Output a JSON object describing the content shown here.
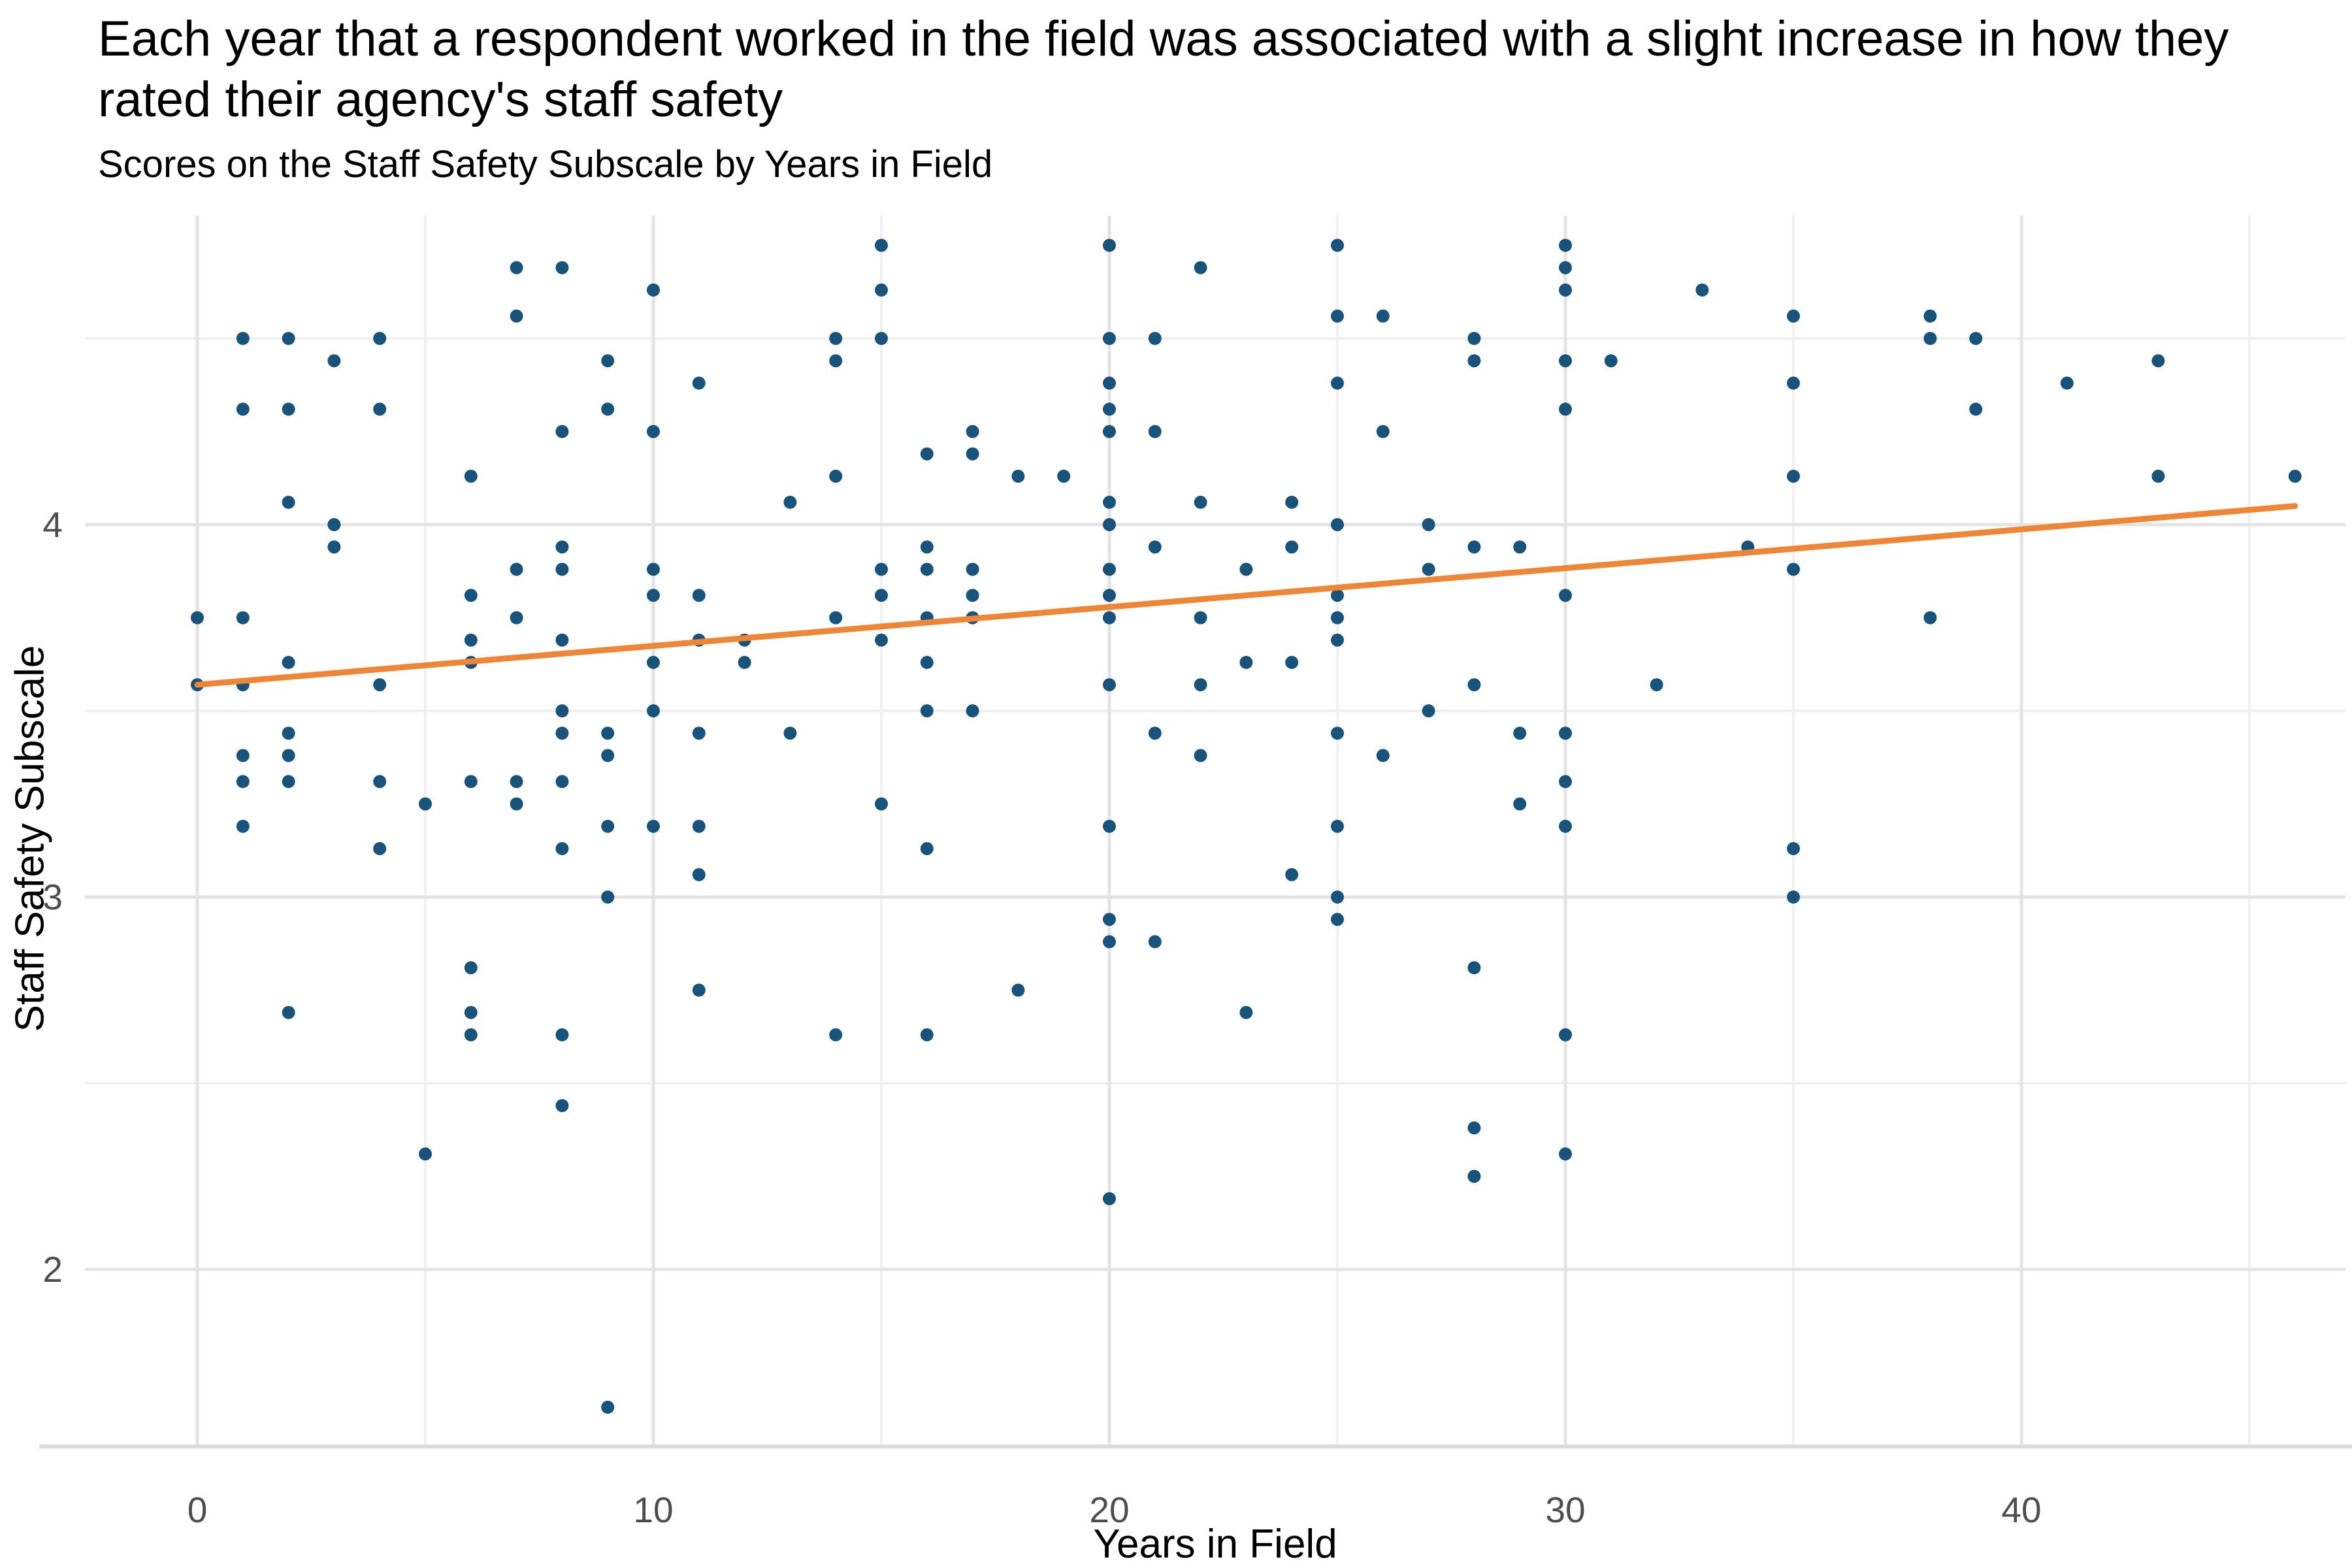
{
  "page": {
    "title": "Each year that a respondent worked in the field was associated with a slight increase in how they rated their agency's staff safety",
    "subtitle": "Scores on the Staff Safety Subscale by Years in Field"
  },
  "chart_data": {
    "type": "scatter",
    "title": "Each year that a respondent worked in the field was associated with a slight increase in how they rated their agency's staff safety",
    "subtitle": "Scores on the Staff Safety Subscale by Years in Field",
    "xlabel": "Years in Field",
    "ylabel": "Staff Safety Subscale",
    "x_ticks": [
      0,
      10,
      20,
      30,
      40
    ],
    "x_minor_ticks": [
      5,
      15,
      25,
      35,
      45
    ],
    "y_ticks": [
      4,
      3,
      2
    ],
    "y_minor_ticks": [
      4.5,
      3.5,
      2.5
    ],
    "xlim": [
      -2.5,
      47.2
    ],
    "ylim": [
      1.52,
      4.83
    ],
    "grid": "major and minor, light gray on white",
    "legend_position": "none",
    "trend_line": {
      "type": "linear",
      "x": [
        0,
        46
      ],
      "y": [
        3.57,
        4.05
      ]
    },
    "colors": {
      "point": "#17537A",
      "trend": "#EE8636",
      "grid_major": "#E3E3E3",
      "grid_minor": "#F0F0F0",
      "axis_line": "#DCDCDC",
      "tick_text": "#4D4D4D"
    },
    "points": [
      [
        15,
        4.75
      ],
      [
        20,
        4.75
      ],
      [
        25,
        4.75
      ],
      [
        30,
        4.75
      ],
      [
        7,
        4.69
      ],
      [
        8,
        4.69
      ],
      [
        22,
        4.69
      ],
      [
        30,
        4.69
      ],
      [
        10,
        4.63
      ],
      [
        15,
        4.63
      ],
      [
        30,
        4.63
      ],
      [
        33,
        4.63
      ],
      [
        7,
        4.56
      ],
      [
        25,
        4.56
      ],
      [
        26,
        4.56
      ],
      [
        35,
        4.56
      ],
      [
        38,
        4.56
      ],
      [
        1,
        4.5
      ],
      [
        2,
        4.5
      ],
      [
        4,
        4.5
      ],
      [
        14,
        4.5
      ],
      [
        15,
        4.5
      ],
      [
        20,
        4.5
      ],
      [
        21,
        4.5
      ],
      [
        28,
        4.5
      ],
      [
        38,
        4.5
      ],
      [
        39,
        4.5
      ],
      [
        3,
        4.44
      ],
      [
        9,
        4.44
      ],
      [
        14,
        4.44
      ],
      [
        28,
        4.44
      ],
      [
        30,
        4.44
      ],
      [
        31,
        4.44
      ],
      [
        43,
        4.44
      ],
      [
        11,
        4.38
      ],
      [
        20,
        4.38
      ],
      [
        25,
        4.38
      ],
      [
        35,
        4.38
      ],
      [
        41,
        4.38
      ],
      [
        1,
        4.31
      ],
      [
        2,
        4.31
      ],
      [
        4,
        4.31
      ],
      [
        9,
        4.31
      ],
      [
        20,
        4.31
      ],
      [
        30,
        4.31
      ],
      [
        39,
        4.31
      ],
      [
        8,
        4.25
      ],
      [
        10,
        4.25
      ],
      [
        17,
        4.25
      ],
      [
        20,
        4.25
      ],
      [
        21,
        4.25
      ],
      [
        26,
        4.25
      ],
      [
        16,
        4.19
      ],
      [
        17,
        4.19
      ],
      [
        6,
        4.13
      ],
      [
        14,
        4.13
      ],
      [
        18,
        4.13
      ],
      [
        19,
        4.13
      ],
      [
        35,
        4.13
      ],
      [
        43,
        4.13
      ],
      [
        46,
        4.13
      ],
      [
        2,
        4.06
      ],
      [
        13,
        4.06
      ],
      [
        20,
        4.06
      ],
      [
        22,
        4.06
      ],
      [
        24,
        4.06
      ],
      [
        3,
        4.0
      ],
      [
        20,
        4.0
      ],
      [
        25,
        4.0
      ],
      [
        27,
        4.0
      ],
      [
        3,
        3.94
      ],
      [
        8,
        3.94
      ],
      [
        16,
        3.94
      ],
      [
        21,
        3.94
      ],
      [
        24,
        3.94
      ],
      [
        28,
        3.94
      ],
      [
        29,
        3.94
      ],
      [
        34,
        3.94
      ],
      [
        7,
        3.88
      ],
      [
        8,
        3.88
      ],
      [
        10,
        3.88
      ],
      [
        15,
        3.88
      ],
      [
        16,
        3.88
      ],
      [
        17,
        3.88
      ],
      [
        20,
        3.88
      ],
      [
        23,
        3.88
      ],
      [
        27,
        3.88
      ],
      [
        35,
        3.88
      ],
      [
        6,
        3.81
      ],
      [
        10,
        3.81
      ],
      [
        11,
        3.81
      ],
      [
        15,
        3.81
      ],
      [
        17,
        3.81
      ],
      [
        20,
        3.81
      ],
      [
        25,
        3.81
      ],
      [
        30,
        3.81
      ],
      [
        0,
        3.75
      ],
      [
        1,
        3.75
      ],
      [
        7,
        3.75
      ],
      [
        14,
        3.75
      ],
      [
        16,
        3.75
      ],
      [
        17,
        3.75
      ],
      [
        20,
        3.75
      ],
      [
        22,
        3.75
      ],
      [
        25,
        3.75
      ],
      [
        38,
        3.75
      ],
      [
        6,
        3.69
      ],
      [
        8,
        3.69
      ],
      [
        11,
        3.69
      ],
      [
        12,
        3.69
      ],
      [
        15,
        3.69
      ],
      [
        25,
        3.69
      ],
      [
        2,
        3.63
      ],
      [
        6,
        3.63
      ],
      [
        10,
        3.63
      ],
      [
        12,
        3.63
      ],
      [
        16,
        3.63
      ],
      [
        23,
        3.63
      ],
      [
        24,
        3.63
      ],
      [
        0,
        3.57
      ],
      [
        1,
        3.57
      ],
      [
        4,
        3.57
      ],
      [
        20,
        3.57
      ],
      [
        22,
        3.57
      ],
      [
        28,
        3.57
      ],
      [
        32,
        3.57
      ],
      [
        8,
        3.5
      ],
      [
        10,
        3.5
      ],
      [
        16,
        3.5
      ],
      [
        17,
        3.5
      ],
      [
        27,
        3.5
      ],
      [
        2,
        3.44
      ],
      [
        8,
        3.44
      ],
      [
        9,
        3.44
      ],
      [
        11,
        3.44
      ],
      [
        13,
        3.44
      ],
      [
        21,
        3.44
      ],
      [
        25,
        3.44
      ],
      [
        29,
        3.44
      ],
      [
        30,
        3.44
      ],
      [
        1,
        3.38
      ],
      [
        2,
        3.38
      ],
      [
        9,
        3.38
      ],
      [
        22,
        3.38
      ],
      [
        26,
        3.38
      ],
      [
        1,
        3.31
      ],
      [
        2,
        3.31
      ],
      [
        4,
        3.31
      ],
      [
        6,
        3.31
      ],
      [
        7,
        3.31
      ],
      [
        8,
        3.31
      ],
      [
        30,
        3.31
      ],
      [
        5,
        3.25
      ],
      [
        7,
        3.25
      ],
      [
        15,
        3.25
      ],
      [
        29,
        3.25
      ],
      [
        1,
        3.19
      ],
      [
        9,
        3.19
      ],
      [
        10,
        3.19
      ],
      [
        11,
        3.19
      ],
      [
        20,
        3.19
      ],
      [
        25,
        3.19
      ],
      [
        30,
        3.19
      ],
      [
        4,
        3.13
      ],
      [
        8,
        3.13
      ],
      [
        16,
        3.13
      ],
      [
        35,
        3.13
      ],
      [
        11,
        3.06
      ],
      [
        24,
        3.06
      ],
      [
        9,
        3.0
      ],
      [
        25,
        3.0
      ],
      [
        35,
        3.0
      ],
      [
        20,
        2.94
      ],
      [
        25,
        2.94
      ],
      [
        20,
        2.88
      ],
      [
        21,
        2.88
      ],
      [
        6,
        2.81
      ],
      [
        28,
        2.81
      ],
      [
        11,
        2.75
      ],
      [
        18,
        2.75
      ],
      [
        2,
        2.69
      ],
      [
        6,
        2.69
      ],
      [
        23,
        2.69
      ],
      [
        6,
        2.63
      ],
      [
        8,
        2.63
      ],
      [
        14,
        2.63
      ],
      [
        16,
        2.63
      ],
      [
        30,
        2.63
      ],
      [
        8,
        2.44
      ],
      [
        28,
        2.38
      ],
      [
        5,
        2.31
      ],
      [
        30,
        2.31
      ],
      [
        28,
        2.25
      ],
      [
        20,
        2.19
      ],
      [
        9,
        1.63
      ]
    ]
  }
}
